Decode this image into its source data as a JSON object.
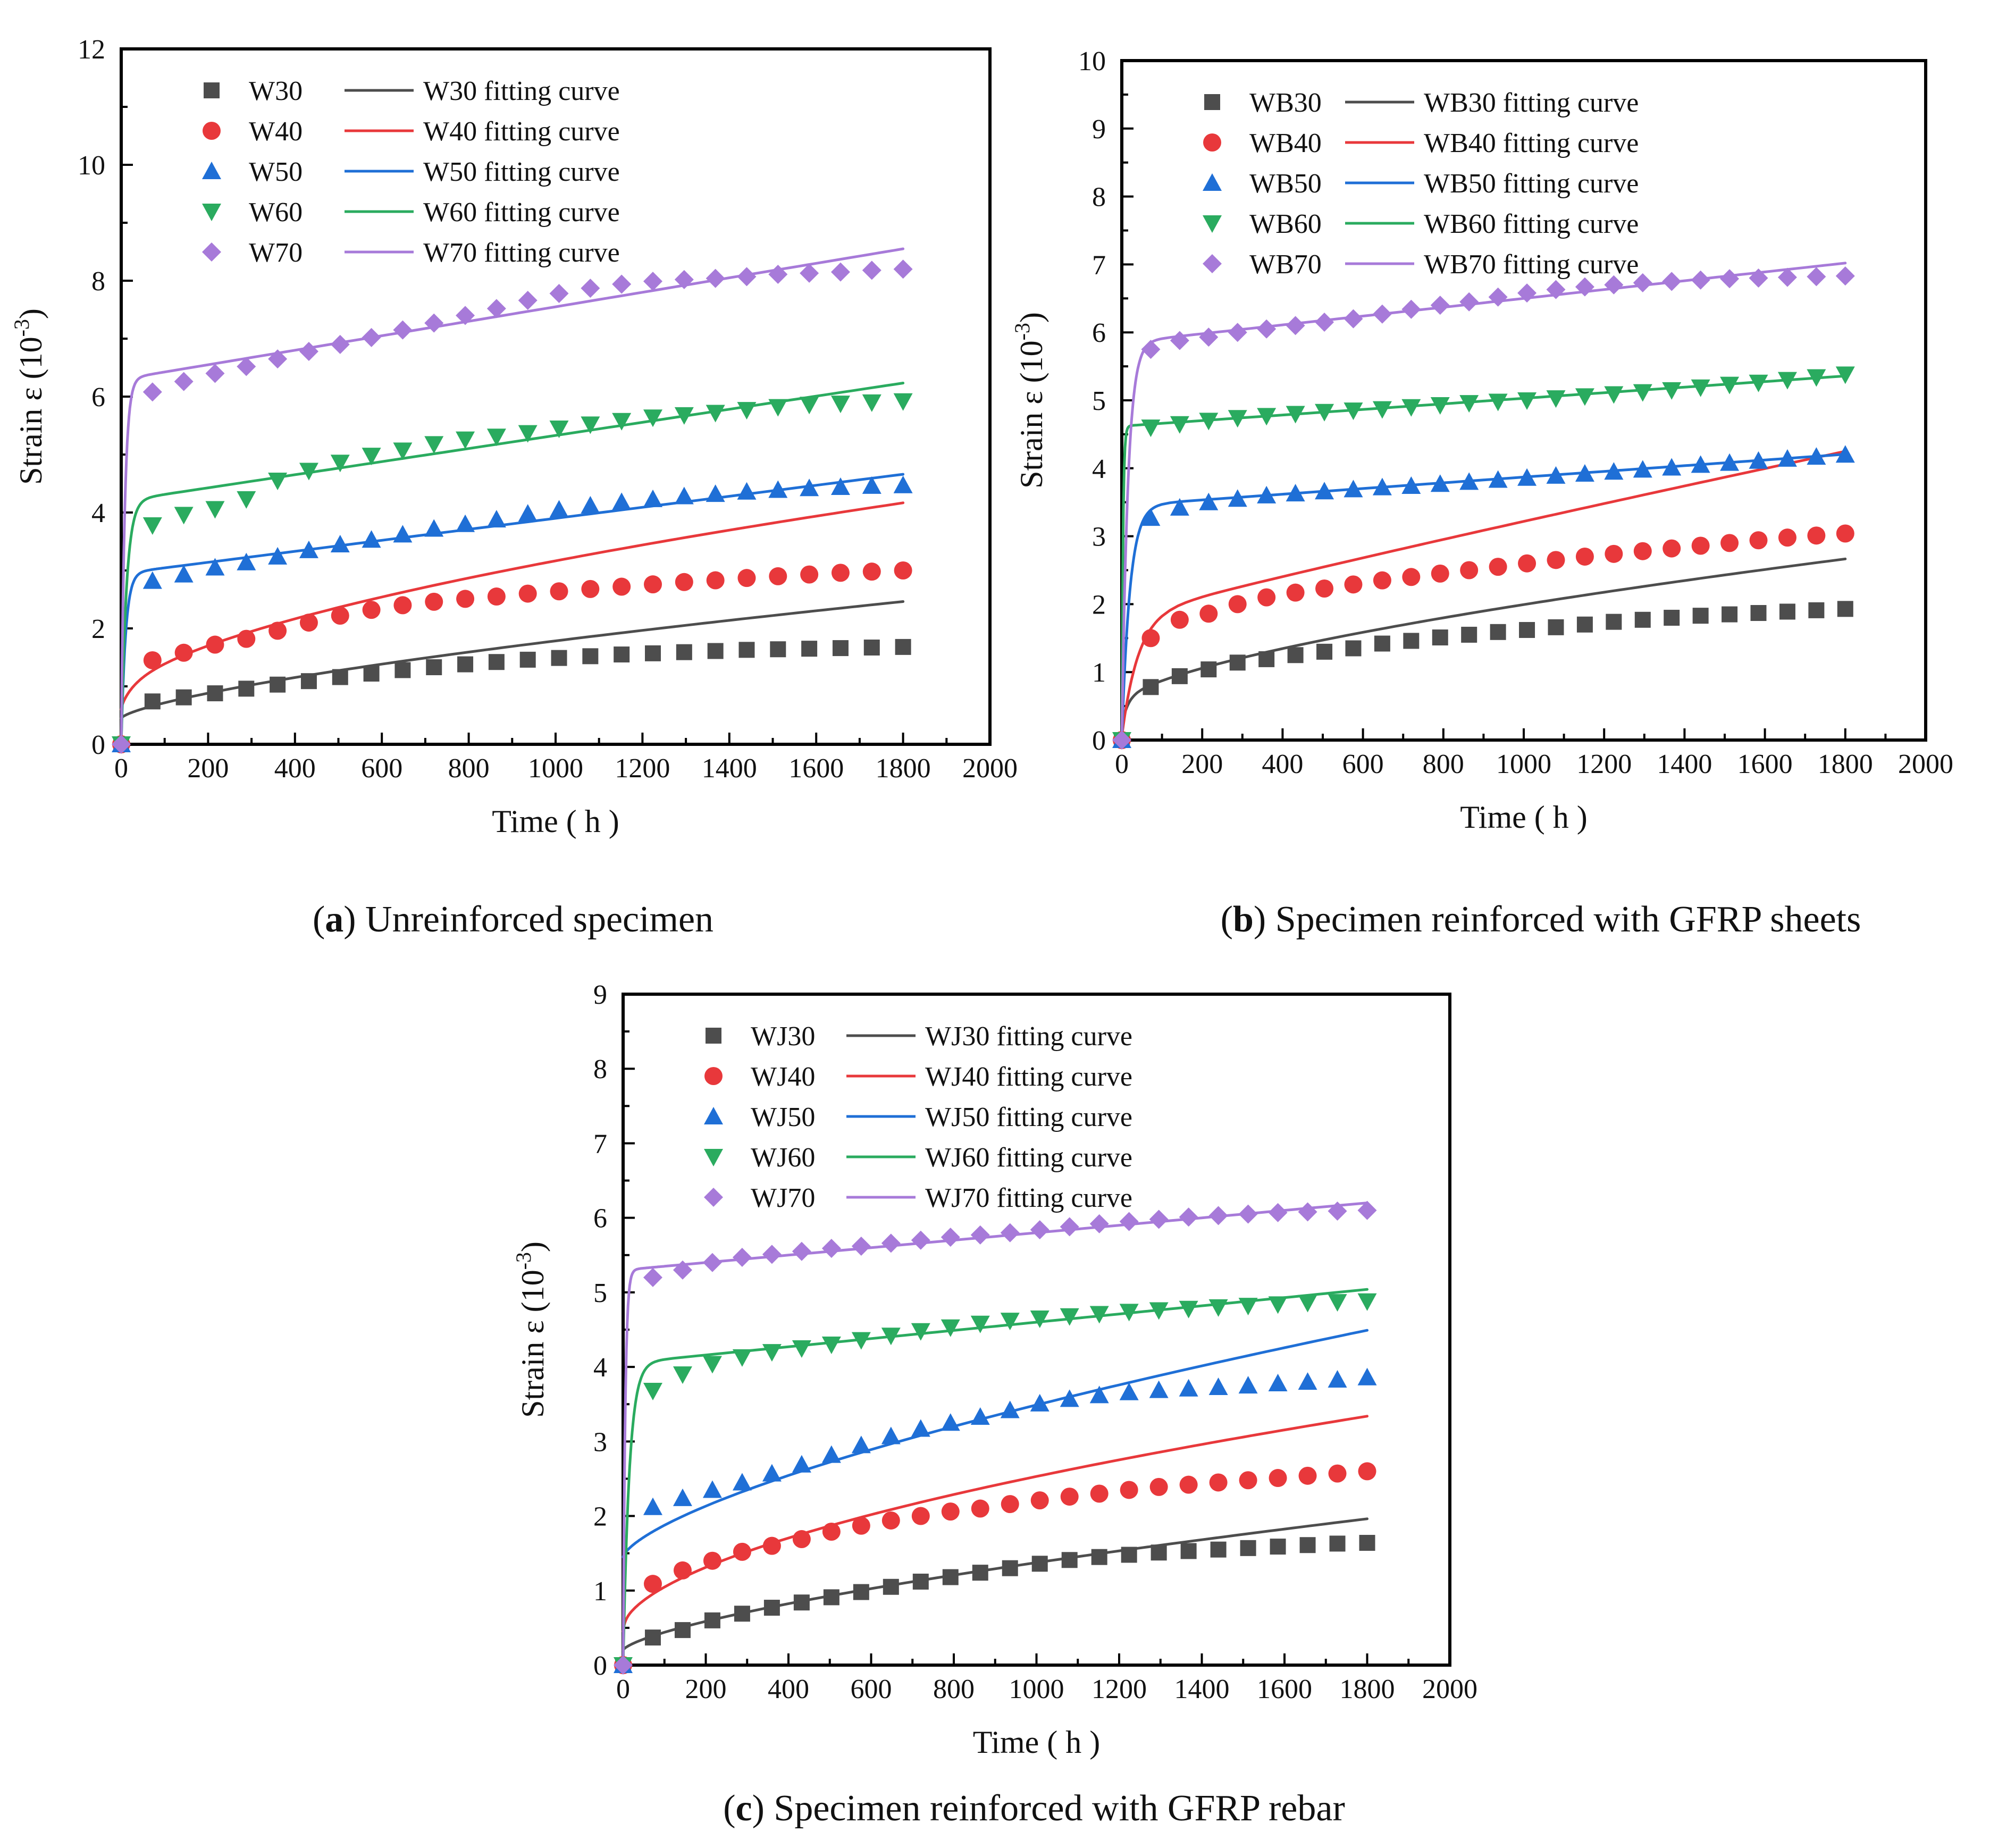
{
  "figure": {
    "xlabel": "Time ( h )",
    "ylabel_main": "Strain  ε (10",
    "ylabel_exp": "-3",
    "ylabel_close": ")"
  },
  "series_styles": [
    {
      "suffix": "30",
      "color": "#4d4d4d",
      "marker": "square"
    },
    {
      "suffix": "40",
      "color": "#e8383b",
      "marker": "circle"
    },
    {
      "suffix": "50",
      "color": "#1f6fd6",
      "marker": "triangle-up"
    },
    {
      "suffix": "60",
      "color": "#2aab5f",
      "marker": "triangle-down"
    },
    {
      "suffix": "70",
      "color": "#a77ad9",
      "marker": "diamond"
    }
  ],
  "chart_data": [
    {
      "id": "a",
      "type": "scatter+line",
      "caption_letter": "a",
      "caption_text": "Unreinforced specimen",
      "xlabel": "Time ( h )",
      "ylabel": "Strain ε (10-3)",
      "xlim": [
        0,
        2000
      ],
      "ylim": [
        0,
        12
      ],
      "xticks": [
        "0",
        "200",
        "400",
        "600",
        "800",
        "1000",
        "1200",
        "1400",
        "1600",
        "1800",
        "2000"
      ],
      "yticks": [
        "0",
        "2",
        "4",
        "6",
        "8",
        "10",
        "12"
      ],
      "legend_position": "top-left",
      "x": [
        0,
        72,
        144,
        216,
        288,
        360,
        432,
        504,
        576,
        648,
        720,
        792,
        864,
        936,
        1008,
        1080,
        1152,
        1224,
        1296,
        1368,
        1440,
        1512,
        1584,
        1656,
        1728,
        1800
      ],
      "series": [
        {
          "name": "W30",
          "fit_name": "W30 fitting curve",
          "values": [
            0,
            0.74,
            0.81,
            0.88,
            0.96,
            1.03,
            1.09,
            1.16,
            1.22,
            1.28,
            1.33,
            1.38,
            1.42,
            1.46,
            1.49,
            1.52,
            1.55,
            1.57,
            1.59,
            1.61,
            1.63,
            1.64,
            1.65,
            1.66,
            1.67,
            1.68
          ],
          "fit": {
            "start": 0.45,
            "knee": 0.45,
            "tau": 1,
            "c": 0.0106,
            "p": 0.7
          }
        },
        {
          "name": "W40",
          "fit_name": "W40 fitting curve",
          "values": [
            0,
            1.45,
            1.58,
            1.72,
            1.82,
            1.96,
            2.1,
            2.22,
            2.32,
            2.4,
            2.46,
            2.51,
            2.55,
            2.6,
            2.64,
            2.68,
            2.72,
            2.76,
            2.8,
            2.83,
            2.87,
            2.9,
            2.93,
            2.96,
            2.98,
            3.0
          ],
          "fit": {
            "start": 0.6,
            "knee": 0.8,
            "tau": 30,
            "c": 0.0375,
            "p": 0.6
          }
        },
        {
          "name": "W50",
          "fit_name": "W50 fitting curve",
          "values": [
            0,
            2.82,
            2.93,
            3.05,
            3.14,
            3.24,
            3.35,
            3.45,
            3.53,
            3.62,
            3.72,
            3.8,
            3.88,
            3.98,
            4.05,
            4.12,
            4.18,
            4.23,
            4.28,
            4.32,
            4.36,
            4.39,
            4.42,
            4.44,
            4.46,
            4.47
          ],
          "fit": {
            "start": 0,
            "knee": 2.95,
            "tau": 10,
            "c": 0.00095,
            "p": 1.0
          }
        },
        {
          "name": "W60",
          "fit_name": "W60 fitting curve",
          "values": [
            0,
            3.78,
            3.96,
            4.06,
            4.23,
            4.55,
            4.72,
            4.86,
            4.98,
            5.07,
            5.18,
            5.26,
            5.31,
            5.37,
            5.45,
            5.52,
            5.58,
            5.64,
            5.68,
            5.72,
            5.77,
            5.82,
            5.86,
            5.88,
            5.9,
            5.92
          ],
          "fit": {
            "start": 0,
            "knee": 4.2,
            "tau": 12,
            "c": 0.00113,
            "p": 1.0
          }
        },
        {
          "name": "W70",
          "fit_name": "W70 fitting curve",
          "values": [
            0,
            6.08,
            6.26,
            6.4,
            6.52,
            6.65,
            6.78,
            6.9,
            7.02,
            7.15,
            7.27,
            7.4,
            7.52,
            7.66,
            7.78,
            7.87,
            7.94,
            7.99,
            8.02,
            8.04,
            8.07,
            8.11,
            8.13,
            8.15,
            8.18,
            8.2
          ],
          "fit": {
            "start": 0,
            "knee": 6.3,
            "tau": 8,
            "c": 0.00125,
            "p": 1.0
          }
        }
      ]
    },
    {
      "id": "b",
      "type": "scatter+line",
      "caption_letter": "b",
      "caption_text": "Specimen reinforced with GFRP sheets",
      "xlabel": "Time ( h )",
      "ylabel": "Strain ε (10-3)",
      "xlim": [
        0,
        2000
      ],
      "ylim": [
        0,
        10
      ],
      "xticks": [
        "0",
        "200",
        "400",
        "600",
        "800",
        "1000",
        "1200",
        "1400",
        "1600",
        "1800",
        "2000"
      ],
      "yticks": [
        "0",
        "1",
        "2",
        "3",
        "4",
        "5",
        "6",
        "7",
        "8",
        "9",
        "10"
      ],
      "legend_position": "top-left",
      "x": [
        0,
        72,
        144,
        216,
        288,
        360,
        432,
        504,
        576,
        648,
        720,
        792,
        864,
        936,
        1008,
        1080,
        1152,
        1224,
        1296,
        1368,
        1440,
        1512,
        1584,
        1656,
        1728,
        1800
      ],
      "series": [
        {
          "name": "WB30",
          "fit_name": "WB30 fitting curve",
          "values": [
            0,
            0.78,
            0.94,
            1.04,
            1.14,
            1.19,
            1.25,
            1.3,
            1.35,
            1.42,
            1.46,
            1.51,
            1.55,
            1.59,
            1.62,
            1.66,
            1.7,
            1.74,
            1.77,
            1.8,
            1.83,
            1.85,
            1.87,
            1.89,
            1.91,
            1.93
          ],
          "fit": {
            "start": 0.2,
            "knee": 0.55,
            "tau": 15,
            "c": 0.0162,
            "p": 0.65
          }
        },
        {
          "name": "WB40",
          "fit_name": "WB40 fitting curve",
          "values": [
            0,
            1.5,
            1.77,
            1.86,
            2.0,
            2.1,
            2.17,
            2.23,
            2.29,
            2.35,
            2.4,
            2.45,
            2.5,
            2.55,
            2.6,
            2.65,
            2.7,
            2.74,
            2.78,
            2.82,
            2.86,
            2.9,
            2.94,
            2.98,
            3.01,
            3.04
          ],
          "fit": {
            "start": 0.05,
            "knee": 1.8,
            "tau": 40,
            "c": 0.0023,
            "p": 0.93
          }
        },
        {
          "name": "WB50",
          "fit_name": "WB50 fitting curve",
          "values": [
            0,
            3.27,
            3.42,
            3.5,
            3.55,
            3.6,
            3.63,
            3.66,
            3.69,
            3.72,
            3.74,
            3.77,
            3.8,
            3.83,
            3.86,
            3.89,
            3.92,
            3.95,
            3.98,
            4.01,
            4.05,
            4.08,
            4.11,
            4.14,
            4.17,
            4.2
          ],
          "fit": {
            "start": 0,
            "knee": 3.45,
            "tau": 20,
            "c": 0.00042,
            "p": 1.0
          }
        },
        {
          "name": "WB60",
          "fit_name": "WB60 fitting curve",
          "values": [
            0,
            4.6,
            4.65,
            4.7,
            4.74,
            4.77,
            4.8,
            4.83,
            4.85,
            4.87,
            4.9,
            4.93,
            4.96,
            4.98,
            5.0,
            5.03,
            5.06,
            5.09,
            5.12,
            5.15,
            5.19,
            5.23,
            5.26,
            5.3,
            5.34,
            5.38
          ],
          "fit": {
            "start": 0,
            "knee": 4.62,
            "tau": 3,
            "c": 0.00041,
            "p": 1.0
          }
        },
        {
          "name": "WB70",
          "fit_name": "WB70 fitting curve",
          "values": [
            0,
            5.75,
            5.88,
            5.93,
            6.0,
            6.05,
            6.1,
            6.15,
            6.2,
            6.27,
            6.34,
            6.4,
            6.45,
            6.52,
            6.58,
            6.63,
            6.67,
            6.7,
            6.73,
            6.75,
            6.77,
            6.79,
            6.8,
            6.81,
            6.82,
            6.83
          ],
          "fit": {
            "start": 0,
            "knee": 5.85,
            "tau": 15,
            "c": 0.00065,
            "p": 1.0
          }
        }
      ]
    },
    {
      "id": "c",
      "type": "scatter+line",
      "caption_letter": "c",
      "caption_text": "Specimen reinforced with GFRP rebar",
      "xlabel": "Time ( h )",
      "ylabel": "Strain ε (10-3)",
      "xlim": [
        0,
        2000
      ],
      "ylim": [
        0,
        9
      ],
      "xticks": [
        "0",
        "200",
        "400",
        "600",
        "800",
        "1000",
        "1200",
        "1400",
        "1600",
        "1800",
        "2000"
      ],
      "yticks": [
        "0",
        "1",
        "2",
        "3",
        "4",
        "5",
        "6",
        "7",
        "8",
        "9"
      ],
      "legend_position": "top-left",
      "x": [
        0,
        72,
        144,
        216,
        288,
        360,
        432,
        504,
        576,
        648,
        720,
        792,
        864,
        936,
        1008,
        1080,
        1152,
        1224,
        1296,
        1368,
        1440,
        1512,
        1584,
        1656,
        1728,
        1800
      ],
      "series": [
        {
          "name": "WJ30",
          "fit_name": "WJ30 fitting curve",
          "values": [
            0,
            0.37,
            0.47,
            0.6,
            0.69,
            0.77,
            0.84,
            0.91,
            0.98,
            1.05,
            1.12,
            1.18,
            1.24,
            1.3,
            1.36,
            1.41,
            1.45,
            1.48,
            1.51,
            1.53,
            1.55,
            1.57,
            1.59,
            1.61,
            1.63,
            1.64
          ],
          "fit": {
            "start": 0.2,
            "knee": 0.2,
            "tau": 1,
            "c": 0.01,
            "p": 0.69
          }
        },
        {
          "name": "WJ40",
          "fit_name": "WJ40 fitting curve",
          "values": [
            0,
            1.09,
            1.27,
            1.4,
            1.52,
            1.6,
            1.69,
            1.79,
            1.87,
            1.94,
            2.0,
            2.06,
            2.1,
            2.16,
            2.21,
            2.26,
            2.3,
            2.35,
            2.39,
            2.42,
            2.45,
            2.48,
            2.51,
            2.54,
            2.57,
            2.6
          ],
          "fit": {
            "start": 0.45,
            "knee": 0.5,
            "tau": 5,
            "c": 0.0396,
            "p": 0.57
          }
        },
        {
          "name": "WJ50",
          "fit_name": "WJ50 fitting curve",
          "values": [
            0,
            2.12,
            2.24,
            2.35,
            2.45,
            2.57,
            2.69,
            2.82,
            2.95,
            3.07,
            3.17,
            3.25,
            3.33,
            3.42,
            3.51,
            3.57,
            3.62,
            3.66,
            3.69,
            3.71,
            3.73,
            3.75,
            3.78,
            3.8,
            3.83,
            3.86
          ],
          "fit": {
            "start": 1.45,
            "knee": 1.45,
            "tau": 1,
            "c": 0.0186,
            "p": 0.68
          }
        },
        {
          "name": "WJ60",
          "fit_name": "WJ60 fitting curve",
          "values": [
            0,
            3.68,
            3.9,
            4.04,
            4.13,
            4.2,
            4.25,
            4.3,
            4.36,
            4.42,
            4.48,
            4.53,
            4.58,
            4.62,
            4.65,
            4.68,
            4.71,
            4.74,
            4.76,
            4.78,
            4.8,
            4.82,
            4.84,
            4.86,
            4.87,
            4.88
          ],
          "fit": {
            "start": 0,
            "knee": 4.05,
            "tau": 15,
            "c": 0.00055,
            "p": 1.0
          }
        },
        {
          "name": "WJ70",
          "fit_name": "WJ70 fitting curve",
          "values": [
            0,
            5.2,
            5.3,
            5.4,
            5.47,
            5.51,
            5.55,
            5.59,
            5.62,
            5.66,
            5.7,
            5.74,
            5.77,
            5.8,
            5.84,
            5.88,
            5.92,
            5.95,
            5.98,
            6.01,
            6.03,
            6.05,
            6.07,
            6.08,
            6.09,
            6.1
          ],
          "fit": {
            "start": 0,
            "knee": 5.3,
            "tau": 5,
            "c": 0.0005,
            "p": 1.0
          }
        }
      ]
    }
  ]
}
